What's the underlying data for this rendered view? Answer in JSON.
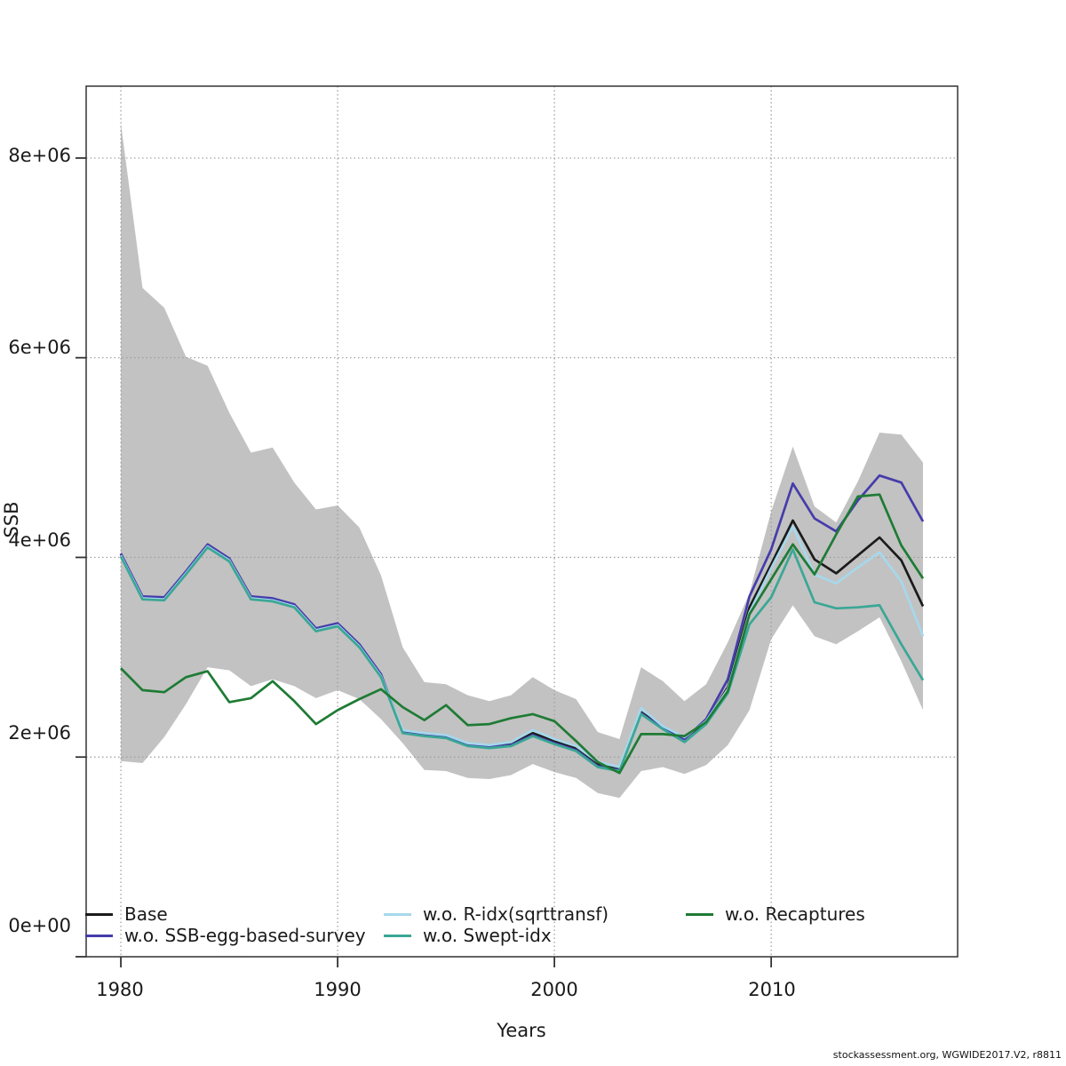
{
  "figure": {
    "watermark": "stockassessment.org, WGWIDE2017.V2, r8811",
    "background": "#ffffff"
  },
  "axes": {
    "x_label": "Years",
    "y_label": "SSB",
    "x_tick_labels": [
      "1980",
      "1990",
      "2000",
      "2010"
    ],
    "y_tick_labels": [
      "0e+00",
      "2e+06",
      "4e+06",
      "6e+06",
      "8e+06"
    ]
  },
  "legend": {
    "position": "bottom-inside",
    "items": [
      {
        "label": "Base",
        "color": "#1b1b1b"
      },
      {
        "label": "w.o. SSB-egg-based-survey",
        "color": "#453cab"
      },
      {
        "label": "w.o. R-idx(sqrttransf)",
        "color": "#a6d8ec"
      },
      {
        "label": "w.o. Swept-idx",
        "color": "#3aa795"
      },
      {
        "label": "w.o. Recaptures",
        "color": "#1e7b34"
      }
    ]
  },
  "chart_data": {
    "type": "line",
    "title": "",
    "xlabel": "Years",
    "ylabel": "SSB",
    "xlim": [
      1978.4,
      2018.6
    ],
    "ylim": [
      0,
      8720000.0
    ],
    "grid": "dotted",
    "grid_color": "#9a9a9a",
    "x_gridlines": [
      1980,
      1990,
      2000,
      2010
    ],
    "y_gridlines": [
      0,
      2000000.0,
      4000000.0,
      6000000.0,
      8000000.0
    ],
    "x": [
      1980,
      1981,
      1982,
      1983,
      1984,
      1985,
      1986,
      1987,
      1988,
      1989,
      1990,
      1991,
      1992,
      1993,
      1994,
      1995,
      1996,
      1997,
      1998,
      1999,
      2000,
      2001,
      2002,
      2003,
      2004,
      2005,
      2006,
      2007,
      2008,
      2009,
      2010,
      2011,
      2012,
      2013,
      2014,
      2015,
      2016,
      2017
    ],
    "band": {
      "name": "Base confidence interval",
      "color": "#c2c2c2",
      "upper": [
        8350000.0,
        6700000.0,
        6500000.0,
        6010000.0,
        5920000.0,
        5450000.0,
        5050000.0,
        5100000.0,
        4750000.0,
        4480000.0,
        4520000.0,
        4300000.0,
        3820000.0,
        3100000.0,
        2750000.0,
        2730000.0,
        2620000.0,
        2560000.0,
        2620000.0,
        2800000.0,
        2670000.0,
        2580000.0,
        2250000.0,
        2180000.0,
        2900000.0,
        2760000.0,
        2560000.0,
        2730000.0,
        3150000.0,
        3640000.0,
        4460000.0,
        5110000.0,
        4510000.0,
        4350000.0,
        4760000.0,
        5250000.0,
        5230000.0,
        4950000.0
      ],
      "lower": [
        1960000.0,
        1940000.0,
        2200000.0,
        2530000.0,
        2900000.0,
        2870000.0,
        2710000.0,
        2780000.0,
        2710000.0,
        2590000.0,
        2670000.0,
        2580000.0,
        2380000.0,
        2140000.0,
        1870000.0,
        1860000.0,
        1790000.0,
        1780000.0,
        1820000.0,
        1930000.0,
        1850000.0,
        1790000.0,
        1640000.0,
        1590000.0,
        1860000.0,
        1900000.0,
        1830000.0,
        1920000.0,
        2120000.0,
        2470000.0,
        3180000.0,
        3520000.0,
        3210000.0,
        3130000.0,
        3260000.0,
        3400000.0,
        2960000.0,
        2470000.0
      ]
    },
    "series": [
      {
        "name": "Base",
        "color": "#1b1b1b",
        "values": [
          4030000.0,
          3600000.0,
          3590000.0,
          3850000.0,
          4120000.0,
          3980000.0,
          3600000.0,
          3580000.0,
          3520000.0,
          3280000.0,
          3330000.0,
          3120000.0,
          2820000.0,
          2260000.0,
          2230000.0,
          2210000.0,
          2130000.0,
          2110000.0,
          2130000.0,
          2240000.0,
          2160000.0,
          2090000.0,
          1930000.0,
          1890000.0,
          2450000.0,
          2300000.0,
          2190000.0,
          2350000.0,
          2700000.0,
          3500000.0,
          3930000.0,
          4370000.0,
          3980000.0,
          3840000.0,
          4020000.0,
          4200000.0,
          3970000.0,
          3510000.0
        ]
      },
      {
        "name": "w.o. SSB-egg-based-survey",
        "color": "#453cab",
        "values": [
          4040000.0,
          3610000.0,
          3600000.0,
          3860000.0,
          4130000.0,
          3990000.0,
          3610000.0,
          3590000.0,
          3530000.0,
          3290000.0,
          3340000.0,
          3130000.0,
          2830000.0,
          2250000.0,
          2220000.0,
          2200000.0,
          2120000.0,
          2100000.0,
          2120000.0,
          2220000.0,
          2140000.0,
          2070000.0,
          1910000.0,
          1870000.0,
          2440000.0,
          2290000.0,
          2180000.0,
          2380000.0,
          2780000.0,
          3610000.0,
          4080000.0,
          4740000.0,
          4390000.0,
          4260000.0,
          4570000.0,
          4820000.0,
          4750000.0,
          4360000.0
        ]
      },
      {
        "name": "w.o. R-idx(sqrttransf)",
        "color": "#a6d8ec",
        "values": [
          4020000.0,
          3590000.0,
          3580000.0,
          3840000.0,
          4110000.0,
          3970000.0,
          3590000.0,
          3570000.0,
          3510000.0,
          3270000.0,
          3320000.0,
          3110000.0,
          2810000.0,
          2270000.0,
          2240000.0,
          2220000.0,
          2140000.0,
          2120000.0,
          2150000.0,
          2270000.0,
          2180000.0,
          2110000.0,
          1950000.0,
          1900000.0,
          2490000.0,
          2310000.0,
          2200000.0,
          2360000.0,
          2680000.0,
          3450000.0,
          3890000.0,
          4310000.0,
          3830000.0,
          3740000.0,
          3900000.0,
          4050000.0,
          3760000.0,
          3210000.0
        ]
      },
      {
        "name": "w.o. Swept-idx",
        "color": "#3aa795",
        "values": [
          4010000.0,
          3580000.0,
          3570000.0,
          3830000.0,
          4100000.0,
          3960000.0,
          3580000.0,
          3560000.0,
          3500000.0,
          3260000.0,
          3310000.0,
          3100000.0,
          2800000.0,
          2240000.0,
          2210000.0,
          2190000.0,
          2110000.0,
          2090000.0,
          2110000.0,
          2210000.0,
          2130000.0,
          2060000.0,
          1900000.0,
          1860000.0,
          2430000.0,
          2280000.0,
          2150000.0,
          2330000.0,
          2640000.0,
          3330000.0,
          3600000.0,
          4080000.0,
          3550000.0,
          3490000.0,
          3500000.0,
          3520000.0,
          3130000.0,
          2770000.0
        ]
      },
      {
        "name": "w.o. Recaptures",
        "color": "#1e7b34",
        "values": [
          2890000.0,
          2670000.0,
          2650000.0,
          2800000.0,
          2860000.0,
          2550000.0,
          2590000.0,
          2760000.0,
          2560000.0,
          2330000.0,
          2470000.0,
          2580000.0,
          2680000.0,
          2500000.0,
          2370000.0,
          2520000.0,
          2320000.0,
          2330000.0,
          2390000.0,
          2430000.0,
          2360000.0,
          2160000.0,
          1950000.0,
          1840000.0,
          2230000.0,
          2230000.0,
          2210000.0,
          2350000.0,
          2660000.0,
          3430000.0,
          3780000.0,
          4130000.0,
          3830000.0,
          4230000.0,
          4610000.0,
          4630000.0,
          4120000.0,
          3790000.0
        ]
      }
    ]
  }
}
